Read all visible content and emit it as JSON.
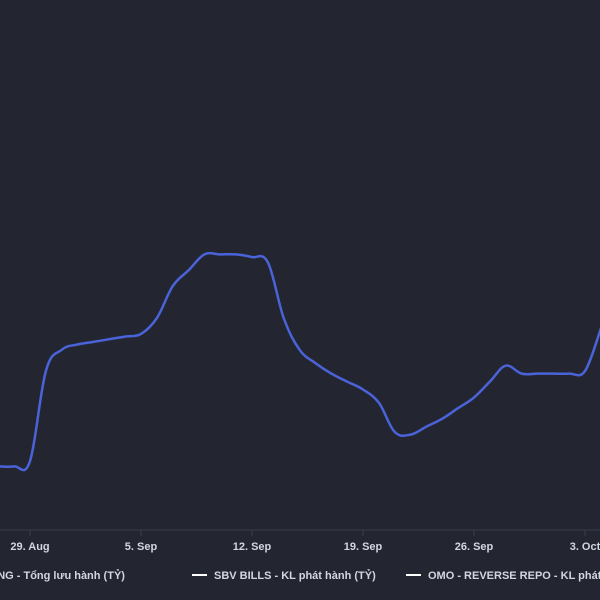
{
  "chart_data": {
    "type": "line",
    "x_ticks": [
      "29. Aug",
      "5. Sep",
      "12. Sep",
      "19. Sep",
      "26. Sep",
      "3. Oct"
    ],
    "series": [
      {
        "name": "ÚT RÒNG - Tổng lưu hành (TỶ)",
        "color": "#4a63d9",
        "x": [
          "Aug 26",
          "Aug 27",
          "Aug 28",
          "Aug 29",
          "Aug 30",
          "Aug 31",
          "Sep 1",
          "Sep 2",
          "Sep 3",
          "Sep 4",
          "Sep 5",
          "Sep 6",
          "Sep 7",
          "Sep 8",
          "Sep 9",
          "Sep 10",
          "Sep 11",
          "Sep 12",
          "Sep 13",
          "Sep 14",
          "Sep 15",
          "Sep 16",
          "Sep 17",
          "Sep 18",
          "Sep 19",
          "Sep 20",
          "Sep 21",
          "Sep 22",
          "Sep 23",
          "Sep 24",
          "Sep 25",
          "Sep 26",
          "Sep 27",
          "Sep 28",
          "Sep 29",
          "Sep 30",
          "Oct 1",
          "Oct 2",
          "Oct 3",
          "Oct 4"
        ],
        "values": [
          12,
          12,
          12,
          13,
          30,
          34,
          35,
          35.5,
          36,
          36.5,
          37,
          40,
          46,
          49,
          52,
          52,
          52,
          51.5,
          50.5,
          40,
          34,
          31.5,
          29.5,
          28,
          26.5,
          24,
          18.5,
          18,
          19.5,
          21,
          23,
          25,
          28,
          31,
          29.5,
          29.5,
          29.5,
          29.5,
          30,
          38
        ]
      },
      {
        "name": "SBV BILLS - KL phát hành (TỶ)",
        "color": "#ffffff",
        "values": []
      },
      {
        "name": "OMO - REVERSE REPO - KL phát hành (TỶ)",
        "color": "#ffffff",
        "values": []
      }
    ],
    "title": "",
    "xlabel": "",
    "ylabel": "",
    "ylim": [
      0,
      100
    ],
    "grid": false,
    "legend": "bottom"
  }
}
